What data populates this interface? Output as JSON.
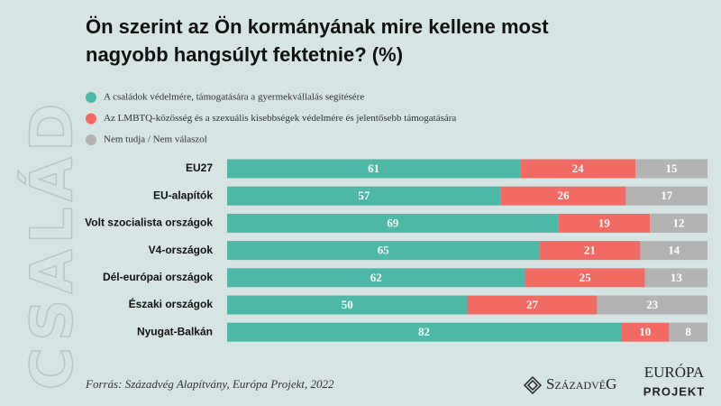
{
  "chart_data": {
    "type": "stacked_bar",
    "title": [
      "Ön szerint az Ön kormányának mire kellene most",
      "nagyobb hangsúlyt fektetnie? (%)"
    ],
    "categories": [
      "EU27",
      "EU-alapítók",
      "Volt szocialista országok",
      "V4-országok",
      "Dél-európai országok",
      "Északi országok",
      "Nyugat-Balkán"
    ],
    "series": [
      {
        "name": "A családok védelmére, támogatására a gyermekvállalás segítésére",
        "color": "#4db8a8",
        "values": [
          61,
          57,
          69,
          65,
          62,
          50,
          82
        ]
      },
      {
        "name": "Az LMBTQ-közösség és a szexuális kisebbségek védelmére és jelentősebb támogatására",
        "color": "#f26b63",
        "values": [
          24,
          26,
          19,
          21,
          25,
          27,
          10
        ]
      },
      {
        "name": "Nem tudja / Nem válaszol",
        "color": "#b3b3b3",
        "values": [
          15,
          17,
          12,
          14,
          13,
          23,
          8
        ]
      }
    ],
    "xlim": [
      0,
      100
    ],
    "watermark": "CSALÁD",
    "source": "Forrás: Századvég Alapítvány, Európa Projekt, 2022",
    "logos": [
      "SzázadvéG",
      "EURÓPA",
      "PROJEKT"
    ]
  }
}
